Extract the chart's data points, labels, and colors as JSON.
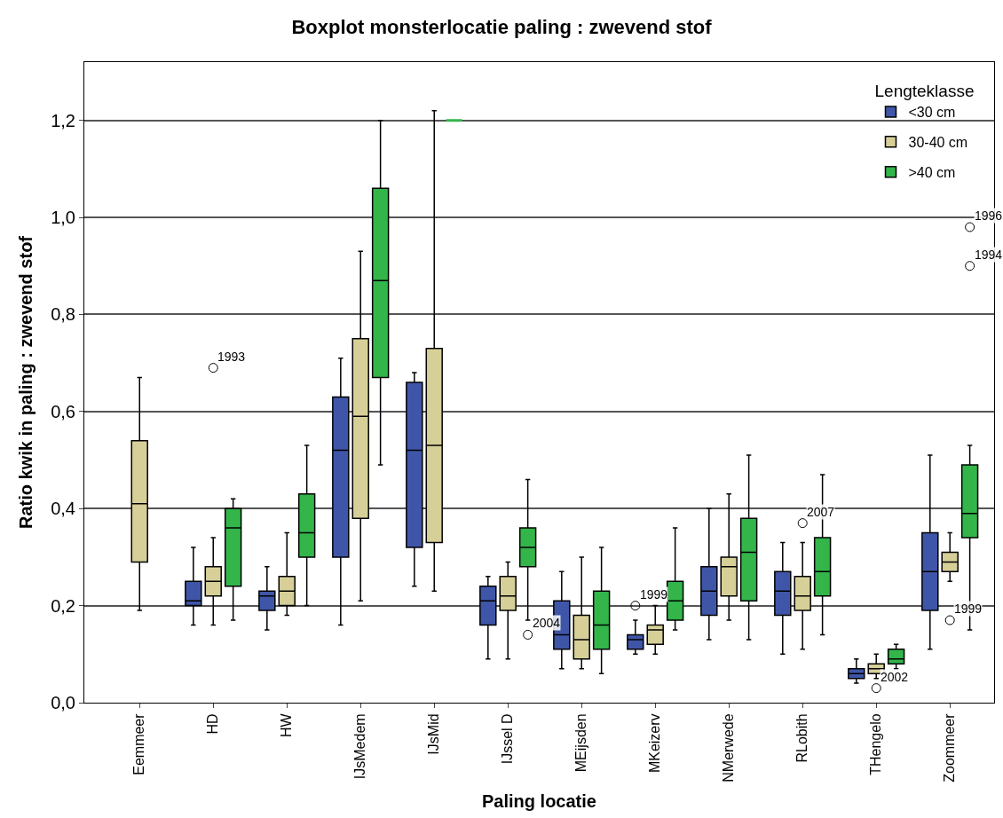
{
  "chart_data": {
    "type": "box",
    "title": "Boxplot monsterlocatie paling : zwevend stof",
    "xlabel": "Paling locatie",
    "ylabel": "Ratio kwik in paling : zwevend stof",
    "legend_title": "Lengteklasse",
    "categories": [
      "Eemmeer",
      "HD",
      "HW",
      "IJsMedem",
      "IJsMid",
      "IJssel D",
      "MEijsden",
      "MKeizerv",
      "NMerwede",
      "RLobith",
      "THengelo",
      "Zoommeer"
    ],
    "series": [
      {
        "name": "<30 cm",
        "color": "#3f56a8",
        "boxes": [
          null,
          {
            "low": 0.16,
            "q1": 0.2,
            "median": 0.21,
            "q3": 0.25,
            "high": 0.32
          },
          {
            "low": 0.15,
            "q1": 0.19,
            "median": 0.22,
            "q3": 0.23,
            "high": 0.28
          },
          {
            "low": 0.16,
            "q1": 0.3,
            "median": 0.52,
            "q3": 0.63,
            "high": 0.71
          },
          {
            "low": 0.24,
            "q1": 0.32,
            "median": 0.52,
            "q3": 0.66,
            "high": 0.68
          },
          {
            "low": 0.09,
            "q1": 0.16,
            "median": 0.21,
            "q3": 0.24,
            "high": 0.26
          },
          {
            "low": 0.07,
            "q1": 0.11,
            "median": 0.14,
            "q3": 0.21,
            "high": 0.27
          },
          {
            "low": 0.1,
            "q1": 0.11,
            "median": 0.13,
            "q3": 0.14,
            "high": 0.17,
            "outliers": [
              0.2
            ]
          },
          {
            "low": 0.13,
            "q1": 0.18,
            "median": 0.23,
            "q3": 0.28,
            "high": 0.4
          },
          {
            "low": 0.1,
            "q1": 0.18,
            "median": 0.23,
            "q3": 0.27,
            "high": 0.33
          },
          {
            "low": 0.04,
            "q1": 0.05,
            "median": 0.06,
            "q3": 0.07,
            "high": 0.09
          },
          {
            "low": 0.11,
            "q1": 0.19,
            "median": 0.27,
            "q3": 0.35,
            "high": 0.51
          }
        ]
      },
      {
        "name": "30-40 cm",
        "color": "#d6cf98",
        "boxes": [
          {
            "low": 0.19,
            "q1": 0.29,
            "median": 0.41,
            "q3": 0.54,
            "high": 0.67
          },
          {
            "low": 0.16,
            "q1": 0.22,
            "median": 0.25,
            "q3": 0.28,
            "high": 0.34,
            "outliers": [
              0.69
            ]
          },
          {
            "low": 0.18,
            "q1": 0.2,
            "median": 0.23,
            "q3": 0.26,
            "high": 0.35
          },
          {
            "low": 0.21,
            "q1": 0.38,
            "median": 0.59,
            "q3": 0.75,
            "high": 0.93
          },
          {
            "low": 0.23,
            "q1": 0.33,
            "median": 0.53,
            "q3": 0.73,
            "high": 1.22
          },
          {
            "low": 0.09,
            "q1": 0.19,
            "median": 0.22,
            "q3": 0.26,
            "high": 0.29
          },
          {
            "low": 0.07,
            "q1": 0.09,
            "median": 0.13,
            "q3": 0.18,
            "high": 0.3
          },
          {
            "low": 0.1,
            "q1": 0.12,
            "median": 0.15,
            "q3": 0.16,
            "high": 0.2
          },
          {
            "low": 0.17,
            "q1": 0.22,
            "median": 0.28,
            "q3": 0.3,
            "high": 0.43
          },
          {
            "low": 0.11,
            "q1": 0.19,
            "median": 0.22,
            "q3": 0.26,
            "high": 0.33,
            "outliers": [
              0.37
            ]
          },
          {
            "low": 0.05,
            "q1": 0.06,
            "median": 0.07,
            "q3": 0.08,
            "high": 0.1,
            "outliers": [
              0.03
            ]
          },
          {
            "low": 0.25,
            "q1": 0.27,
            "median": 0.29,
            "q3": 0.31,
            "high": 0.35,
            "outliers": [
              0.17
            ]
          }
        ]
      },
      {
        "name": ">40 cm",
        "color": "#33b54a",
        "boxes": [
          null,
          {
            "low": 0.17,
            "q1": 0.24,
            "median": 0.36,
            "q3": 0.4,
            "high": 0.42
          },
          {
            "low": 0.2,
            "q1": 0.3,
            "median": 0.35,
            "q3": 0.43,
            "high": 0.53
          },
          {
            "low": 0.49,
            "q1": 0.67,
            "median": 0.87,
            "q3": 1.06,
            "high": 1.2
          },
          {
            "low": 1.2,
            "q1": 1.2,
            "median": 1.2,
            "q3": 1.2,
            "high": 1.2
          },
          {
            "low": 0.17,
            "q1": 0.28,
            "median": 0.32,
            "q3": 0.36,
            "high": 0.46,
            "outliers": [
              0.14
            ]
          },
          {
            "low": 0.06,
            "q1": 0.11,
            "median": 0.16,
            "q3": 0.23,
            "high": 0.32
          },
          {
            "low": 0.15,
            "q1": 0.17,
            "median": 0.21,
            "q3": 0.25,
            "high": 0.36
          },
          {
            "low": 0.13,
            "q1": 0.21,
            "median": 0.31,
            "q3": 0.38,
            "high": 0.51
          },
          {
            "low": 0.14,
            "q1": 0.22,
            "median": 0.27,
            "q3": 0.34,
            "high": 0.47
          },
          {
            "low": 0.07,
            "q1": 0.08,
            "median": 0.09,
            "q3": 0.11,
            "high": 0.12
          },
          {
            "low": 0.15,
            "q1": 0.34,
            "median": 0.39,
            "q3": 0.49,
            "high": 0.53,
            "outliers": [
              0.9,
              0.98
            ]
          }
        ]
      }
    ],
    "annotations": [
      "1993",
      "2004",
      "1999",
      "2007",
      "2002",
      "1999",
      "1994",
      "1996"
    ],
    "ylim": [
      0,
      1.32
    ],
    "yticks": [
      {
        "value": 0,
        "label": "0,0"
      },
      {
        "value": 0.2,
        "label": "0,2"
      },
      {
        "value": 0.4,
        "label": "0,4"
      },
      {
        "value": 0.6,
        "label": "0,6"
      },
      {
        "value": 0.8,
        "label": "0,8"
      },
      {
        "value": 1.0,
        "label": "1,0"
      },
      {
        "value": 1.2,
        "label": "1,2"
      }
    ],
    "grid": "y",
    "legend": "top right"
  }
}
